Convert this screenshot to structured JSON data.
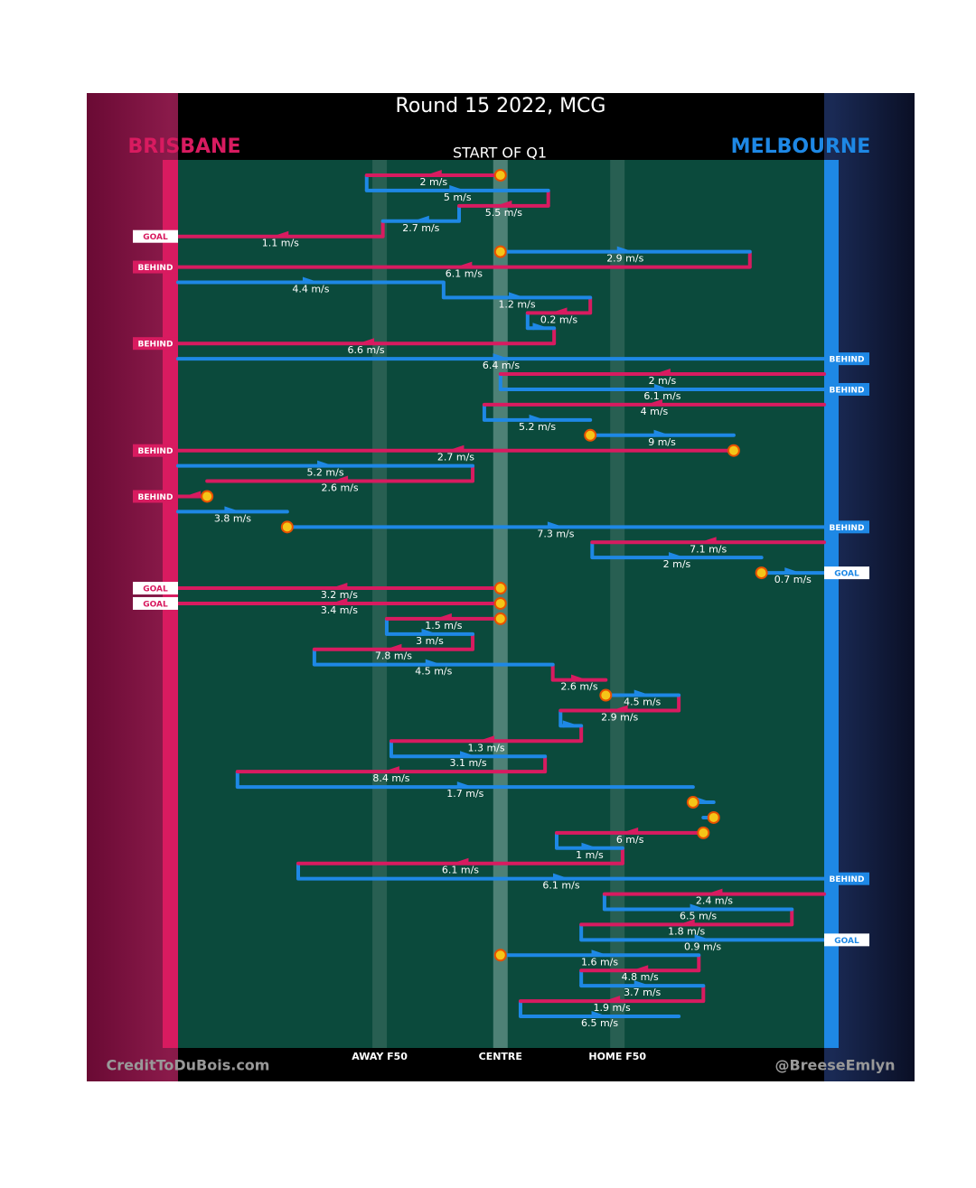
{
  "chart_data": {
    "type": "chain",
    "title": "Round 15 2022, MCG",
    "subtitle": "START OF Q1",
    "series": [
      {
        "name": "BRISBANE",
        "color": "#d81b60"
      },
      {
        "name": "MELBOURNE",
        "color": "#1e88e5"
      }
    ],
    "xlim": [
      0,
      100
    ],
    "xticks": [
      {
        "value": 31.2,
        "label": "AWAY F50"
      },
      {
        "value": 49.9,
        "label": "CENTRE"
      },
      {
        "value": 68.0,
        "label": "HOME F50"
      }
    ],
    "credits": [
      "CreditToDuBois.com",
      "@BreeseEmlyn"
    ],
    "segments": [
      {
        "team": 0,
        "from": 49.9,
        "to": 29.2,
        "speed": 2,
        "speed_label": "2 m/s",
        "start": true
      },
      {
        "team": 1,
        "from": 29.2,
        "to": 57.3,
        "speed": 5,
        "speed_label": "5 m/s"
      },
      {
        "team": 0,
        "from": 57.3,
        "to": 43.5,
        "speed": 5.5,
        "speed_label": "5.5 m/s"
      },
      {
        "team": 1,
        "from": 43.5,
        "to": 31.7,
        "speed": 2.7,
        "speed_label": "2.7 m/s"
      },
      {
        "team": 0,
        "from": 31.7,
        "to": 0,
        "speed": 1.1,
        "speed_label": "1.1 m/s",
        "outcome": "GOAL"
      },
      {
        "team": 1,
        "from": 49.9,
        "to": 88.5,
        "speed": 2.9,
        "speed_label": "2.9 m/s",
        "start": true
      },
      {
        "team": 0,
        "from": 88.5,
        "to": 0,
        "speed": 6.1,
        "speed_label": "6.1 m/s",
        "outcome": "BEHIND"
      },
      {
        "team": 1,
        "from": 0,
        "to": 41.1,
        "speed": 4.4,
        "speed_label": "4.4 m/s"
      },
      {
        "team": 1,
        "from": 41.1,
        "to": 63.8,
        "speed": 1.2,
        "speed_label": "1.2 m/s"
      },
      {
        "team": 0,
        "from": 63.8,
        "to": 54.1,
        "speed": 0.2,
        "speed_label": "0.2 m/s"
      },
      {
        "team": 1,
        "from": 54.1,
        "to": 58.2,
        "speed": null
      },
      {
        "team": 0,
        "from": 58.2,
        "to": 0,
        "speed": 6.6,
        "speed_label": "6.6 m/s",
        "outcome": "BEHIND"
      },
      {
        "team": 1,
        "from": 0,
        "to": 100,
        "speed": 6.4,
        "speed_label": "6.4 m/s",
        "outcome": "BEHIND"
      },
      {
        "team": 0,
        "from": 100,
        "to": 49.9,
        "speed": 2,
        "speed_label": "2 m/s"
      },
      {
        "team": 1,
        "from": 49.9,
        "to": 100,
        "speed": 6.1,
        "speed_label": "6.1 m/s",
        "outcome": "BEHIND"
      },
      {
        "team": 0,
        "from": 100,
        "to": 47.4,
        "speed": 4,
        "speed_label": "4 m/s"
      },
      {
        "team": 1,
        "from": 47.4,
        "to": 63.8,
        "speed": 5.2,
        "speed_label": "5.2 m/s"
      },
      {
        "team": 1,
        "from": 63.8,
        "to": 86.0,
        "speed": 9,
        "speed_label": "9 m/s",
        "start": true
      },
      {
        "team": 0,
        "from": 86.0,
        "to": 0,
        "speed": 2.7,
        "speed_label": "2.7 m/s",
        "start": true,
        "outcome": "BEHIND"
      },
      {
        "team": 1,
        "from": 0,
        "to": 45.6,
        "speed": 5.2,
        "speed_label": "5.2 m/s"
      },
      {
        "team": 0,
        "from": 45.6,
        "to": 4.5,
        "speed": 2.6,
        "speed_label": "2.6 m/s"
      },
      {
        "team": 0,
        "from": 4.5,
        "to": 0,
        "speed": null,
        "start": true,
        "outcome": "BEHIND"
      },
      {
        "team": 1,
        "from": 0,
        "to": 16.9,
        "speed": 3.8,
        "speed_label": "3.8 m/s"
      },
      {
        "team": 1,
        "from": 16.9,
        "to": 100,
        "speed": 7.3,
        "speed_label": "7.3 m/s",
        "start": true,
        "outcome": "BEHIND"
      },
      {
        "team": 0,
        "from": 100,
        "to": 64.1,
        "speed": 7.1,
        "speed_label": "7.1 m/s"
      },
      {
        "team": 1,
        "from": 64.1,
        "to": 90.3,
        "speed": 2,
        "speed_label": "2 m/s"
      },
      {
        "team": 1,
        "from": 90.3,
        "to": 100,
        "speed": 0.7,
        "speed_label": "0.7 m/s",
        "start": true,
        "outcome": "GOAL"
      },
      {
        "team": 0,
        "from": 49.9,
        "to": 0,
        "speed": 3.2,
        "speed_label": "3.2 m/s",
        "start": true,
        "outcome": "GOAL"
      },
      {
        "team": 0,
        "from": 49.9,
        "to": 0,
        "speed": 3.4,
        "speed_label": "3.4 m/s",
        "start": true,
        "outcome": "GOAL"
      },
      {
        "team": 0,
        "from": 49.9,
        "to": 32.3,
        "speed": 1.5,
        "speed_label": "1.5 m/s",
        "start": true
      },
      {
        "team": 1,
        "from": 32.3,
        "to": 45.6,
        "speed": 3,
        "speed_label": "3 m/s"
      },
      {
        "team": 0,
        "from": 45.6,
        "to": 21.1,
        "speed": 7.8,
        "speed_label": "7.8 m/s"
      },
      {
        "team": 1,
        "from": 21.1,
        "to": 58.0,
        "speed": 4.5,
        "speed_label": "4.5 m/s"
      },
      {
        "team": 0,
        "from": 58.0,
        "to": 66.2,
        "speed": 2.6,
        "speed_label": "2.6 m/s"
      },
      {
        "team": 1,
        "from": 66.2,
        "to": 77.5,
        "speed": 4.5,
        "speed_label": "4.5 m/s",
        "start": true
      },
      {
        "team": 0,
        "from": 77.5,
        "to": 59.2,
        "speed": 2.9,
        "speed_label": "2.9 m/s"
      },
      {
        "team": 1,
        "from": 59.2,
        "to": 62.4,
        "speed": null
      },
      {
        "team": 0,
        "from": 62.4,
        "to": 33.0,
        "speed": 1.3,
        "speed_label": "1.3 m/s"
      },
      {
        "team": 1,
        "from": 33.0,
        "to": 56.8,
        "speed": 3.1,
        "speed_label": "3.1 m/s"
      },
      {
        "team": 0,
        "from": 56.8,
        "to": 9.2,
        "speed": 8.4,
        "speed_label": "8.4 m/s"
      },
      {
        "team": 1,
        "from": 9.2,
        "to": 79.7,
        "speed": 1.7,
        "speed_label": "1.7 m/s"
      },
      {
        "team": 1,
        "from": 79.7,
        "to": 82.9,
        "speed": null,
        "start": true
      },
      {
        "team": 1,
        "from": 82.9,
        "to": 81.3,
        "speed": null,
        "start": true
      },
      {
        "team": 0,
        "from": 81.3,
        "to": 58.6,
        "speed": 6,
        "speed_label": "6 m/s",
        "start": true
      },
      {
        "team": 1,
        "from": 58.6,
        "to": 68.8,
        "speed": 1,
        "speed_label": "1 m/s"
      },
      {
        "team": 0,
        "from": 68.8,
        "to": 18.6,
        "speed": 6.1,
        "speed_label": "6.1 m/s"
      },
      {
        "team": 1,
        "from": 18.6,
        "to": 100,
        "speed": 6.1,
        "speed_label": "6.1 m/s",
        "outcome": "BEHIND"
      },
      {
        "team": 0,
        "from": 100,
        "to": 66.0,
        "speed": 2.4,
        "speed_label": "2.4 m/s"
      },
      {
        "team": 1,
        "from": 66.0,
        "to": 95.0,
        "speed": 6.5,
        "speed_label": "6.5 m/s"
      },
      {
        "team": 0,
        "from": 95.0,
        "to": 62.4,
        "speed": 1.8,
        "speed_label": "1.8 m/s"
      },
      {
        "team": 1,
        "from": 62.4,
        "to": 100,
        "speed": 0.9,
        "speed_label": "0.9 m/s",
        "outcome": "GOAL"
      },
      {
        "team": 1,
        "from": 49.9,
        "to": 80.6,
        "speed": 1.6,
        "speed_label": "1.6 m/s",
        "start": true
      },
      {
        "team": 0,
        "from": 80.6,
        "to": 62.4,
        "speed": 4.8,
        "speed_label": "4.8 m/s"
      },
      {
        "team": 1,
        "from": 62.4,
        "to": 81.3,
        "speed": 3.7,
        "speed_label": "3.7 m/s"
      },
      {
        "team": 0,
        "from": 81.3,
        "to": 53.0,
        "speed": 1.9,
        "speed_label": "1.9 m/s"
      },
      {
        "team": 1,
        "from": 53.0,
        "to": 77.5,
        "speed": 6.5,
        "speed_label": "6.5 m/s"
      }
    ]
  }
}
